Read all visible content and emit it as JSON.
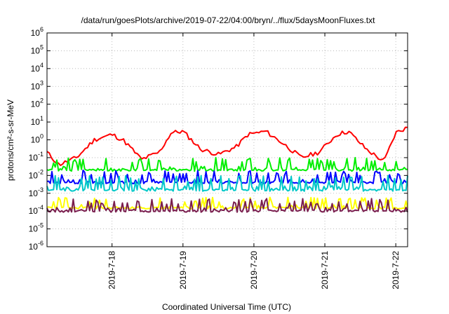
{
  "chart_data": {
    "type": "line",
    "title": "/data/run/goesPlots/archive/2019-07-22/04:00/bryn/../flux/5daysMoonFluxes.txt",
    "xlabel": "Coordinated Universal Time (UTC)",
    "ylabel": "protons/cm²-s-sr-MeV",
    "y_scale": "log",
    "ylim": [
      1e-06,
      1000000.0
    ],
    "y_tick_exponents": [
      -6,
      -5,
      -4,
      -3,
      -2,
      -1,
      0,
      1,
      2,
      3,
      4,
      5,
      6
    ],
    "y_tick_base": "10",
    "x_range": [
      "2019-07-17 02:00",
      "2019-07-22 04:00"
    ],
    "x_ticks": [
      {
        "date": "2019-07-18 00:00",
        "label": "2019-7-18"
      },
      {
        "date": "2019-07-19 00:00",
        "label": "2019-7-19"
      },
      {
        "date": "2019-07-20 00:00",
        "label": "2019-7-20"
      },
      {
        "date": "2019-07-21 00:00",
        "label": "2019-7-21"
      },
      {
        "date": "2019-07-22 00:00",
        "label": "2019-7-22"
      }
    ],
    "grid": true,
    "legend": "none",
    "series": [
      {
        "color": "#ff0000",
        "x": [
          "2019-07-17 02:00",
          "2019-07-17 06:00",
          "2019-07-17 12:00",
          "2019-07-17 18:00",
          "2019-07-18 00:00",
          "2019-07-18 04:00",
          "2019-07-18 10:00",
          "2019-07-18 16:00",
          "2019-07-18 20:00",
          "2019-07-19 00:00",
          "2019-07-19 06:00",
          "2019-07-19 12:00",
          "2019-07-19 18:00",
          "2019-07-19 22:00",
          "2019-07-20 04:00",
          "2019-07-20 10:00",
          "2019-07-20 16:00",
          "2019-07-20 22:00",
          "2019-07-21 04:00",
          "2019-07-21 08:00",
          "2019-07-21 14:00",
          "2019-07-21 20:00",
          "2019-07-22 00:00",
          "2019-07-22 04:00"
        ],
        "y": [
          0.2,
          0.04,
          0.1,
          1.0,
          2.0,
          0.9,
          0.08,
          0.2,
          2.5,
          3.0,
          0.3,
          0.15,
          0.4,
          2.0,
          3.0,
          0.6,
          0.1,
          0.2,
          2.0,
          3.0,
          0.3,
          0.06,
          2.5,
          5.0
        ]
      },
      {
        "color": "#00ee00",
        "base": 0.02,
        "spike": 0.1
      },
      {
        "color": "#0000ff",
        "base": 0.004,
        "spike": 0.02
      },
      {
        "color": "#00c8c8",
        "base": 0.0015,
        "spike": 0.01
      },
      {
        "color": "#ffff00",
        "base": 0.00015,
        "spike": 0.0006
      },
      {
        "color": "#7a1e4e",
        "base": 0.0001,
        "spike": 0.0005
      }
    ]
  }
}
